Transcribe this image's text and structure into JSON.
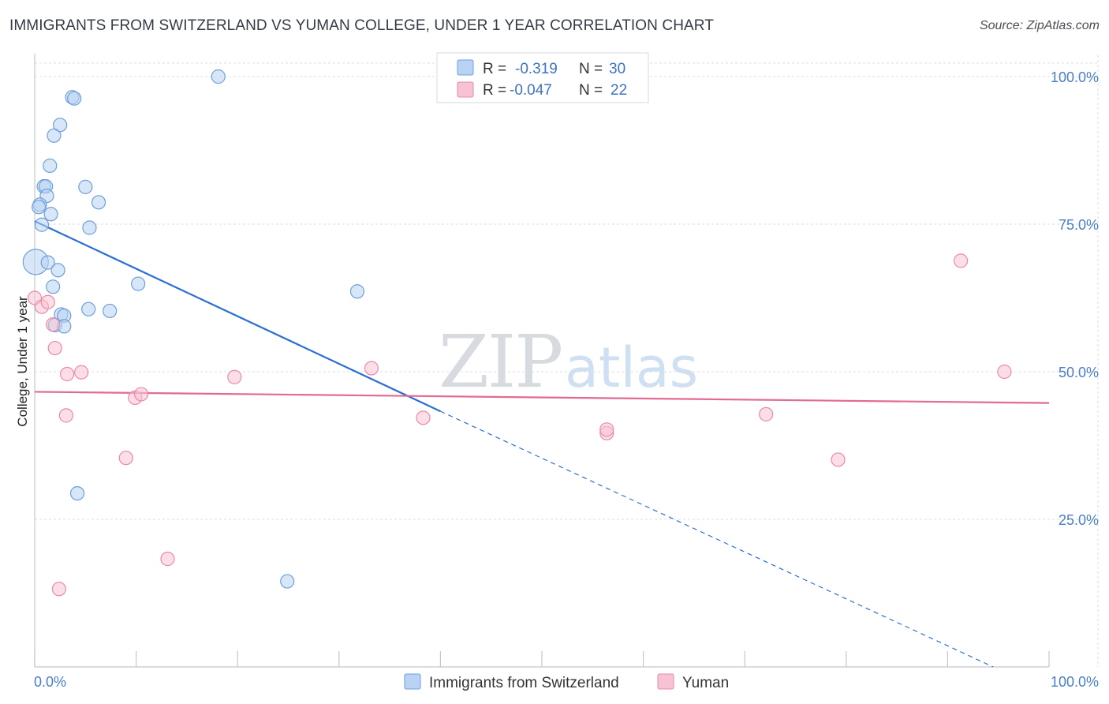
{
  "header": {
    "title": "IMMIGRANTS FROM SWITZERLAND VS YUMAN COLLEGE, UNDER 1 YEAR CORRELATION CHART",
    "source": "Source: ZipAtlas.com"
  },
  "watermark": {
    "part1": "ZIP",
    "part2": "atlas"
  },
  "colors": {
    "blue_fill": "#b8d3f3",
    "blue_stroke": "#6d9fdc",
    "blue_line": "#2a6fd1",
    "pink_fill": "#f7c3d3",
    "pink_stroke": "#e98aa8",
    "pink_line": "#e26a93",
    "grid": "#d9dde3",
    "tick_text": "#4a7ec8"
  },
  "legend": {
    "rows": [
      {
        "r_label": "R =",
        "r_value": "-0.319",
        "n_label": "N =",
        "n_value": "30"
      },
      {
        "r_label": "R =",
        "r_value": "-0.047",
        "n_label": "N =",
        "n_value": "22"
      }
    ]
  },
  "chart_data": {
    "type": "scatter",
    "title": "IMMIGRANTS FROM SWITZERLAND VS YUMAN COLLEGE, UNDER 1 YEAR CORRELATION CHART",
    "xlabel": "",
    "ylabel": "College, Under 1 year",
    "xlim": [
      0,
      100
    ],
    "ylim": [
      0,
      102
    ],
    "x_tick_labels": [
      "0.0%",
      "100.0%"
    ],
    "y_ticks": [
      25,
      50,
      75,
      100
    ],
    "y_tick_labels": [
      "25.0%",
      "50.0%",
      "75.0%",
      "100.0%"
    ],
    "grid": true,
    "legend_position": "top-center",
    "series": [
      {
        "name": "Immigrants from Switzerland",
        "r": -0.319,
        "n": 30,
        "points": [
          {
            "x": 18.1,
            "y": 100.0
          },
          {
            "x": 3.7,
            "y": 96.5
          },
          {
            "x": 3.9,
            "y": 96.3
          },
          {
            "x": 2.5,
            "y": 91.8
          },
          {
            "x": 1.9,
            "y": 90.0
          },
          {
            "x": 1.5,
            "y": 84.9
          },
          {
            "x": 0.9,
            "y": 81.4
          },
          {
            "x": 1.1,
            "y": 81.4
          },
          {
            "x": 5.0,
            "y": 81.3
          },
          {
            "x": 1.2,
            "y": 79.8
          },
          {
            "x": 6.3,
            "y": 78.7
          },
          {
            "x": 0.5,
            "y": 78.3
          },
          {
            "x": 0.4,
            "y": 77.9
          },
          {
            "x": 1.6,
            "y": 76.7
          },
          {
            "x": 0.7,
            "y": 74.9
          },
          {
            "x": 5.4,
            "y": 74.4
          },
          {
            "x": 0.1,
            "y": 68.6
          },
          {
            "x": 1.3,
            "y": 68.5
          },
          {
            "x": 2.3,
            "y": 67.2
          },
          {
            "x": 10.2,
            "y": 64.9
          },
          {
            "x": 1.8,
            "y": 64.4
          },
          {
            "x": 31.8,
            "y": 63.6
          },
          {
            "x": 5.3,
            "y": 60.6
          },
          {
            "x": 7.4,
            "y": 60.3
          },
          {
            "x": 2.6,
            "y": 59.7
          },
          {
            "x": 2.9,
            "y": 59.5
          },
          {
            "x": 2.0,
            "y": 57.9
          },
          {
            "x": 2.9,
            "y": 57.7
          },
          {
            "x": 4.2,
            "y": 29.4
          },
          {
            "x": 24.9,
            "y": 14.5
          }
        ],
        "trend": {
          "x0": 0,
          "y0": 75.5,
          "x1": 40,
          "y1": 43.3,
          "dash_x1": 94.5,
          "dash_y1": 0
        }
      },
      {
        "name": "Yuman",
        "r": -0.047,
        "n": 22,
        "points": [
          {
            "x": 0.0,
            "y": 62.5
          },
          {
            "x": 0.7,
            "y": 61.0
          },
          {
            "x": 1.3,
            "y": 61.8
          },
          {
            "x": 1.8,
            "y": 58.0
          },
          {
            "x": 2.0,
            "y": 54.0
          },
          {
            "x": 3.2,
            "y": 49.6
          },
          {
            "x": 4.6,
            "y": 49.9
          },
          {
            "x": 19.7,
            "y": 49.1
          },
          {
            "x": 33.2,
            "y": 50.6
          },
          {
            "x": 95.6,
            "y": 50.0
          },
          {
            "x": 9.9,
            "y": 45.6
          },
          {
            "x": 10.5,
            "y": 46.2
          },
          {
            "x": 3.1,
            "y": 42.6
          },
          {
            "x": 38.3,
            "y": 42.2
          },
          {
            "x": 72.1,
            "y": 42.8
          },
          {
            "x": 56.4,
            "y": 39.6
          },
          {
            "x": 56.4,
            "y": 40.2
          },
          {
            "x": 91.3,
            "y": 68.8
          },
          {
            "x": 9.0,
            "y": 35.4
          },
          {
            "x": 79.2,
            "y": 35.1
          },
          {
            "x": 13.1,
            "y": 18.3
          },
          {
            "x": 2.4,
            "y": 13.2
          }
        ],
        "trend": {
          "x0": 0,
          "y0": 46.6,
          "x1": 100,
          "y1": 44.7
        }
      }
    ]
  }
}
